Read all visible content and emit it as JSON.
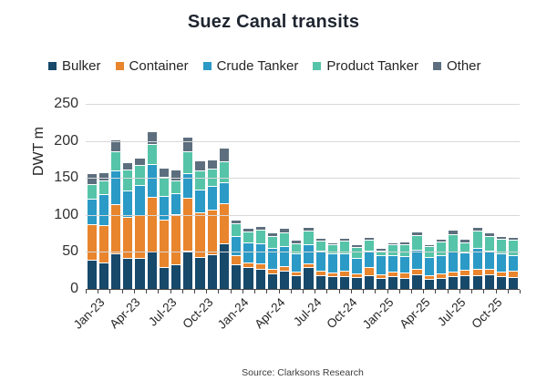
{
  "chart_data": {
    "type": "bar",
    "stacked": true,
    "title": "Suez Canal transits",
    "ylabel": "DWT m",
    "ylim": [
      0,
      250
    ],
    "yticks": [
      0,
      50,
      100,
      150,
      200,
      250
    ],
    "grid": true,
    "legend_position": "top",
    "xtick_labels": [
      "Jan-23",
      "Apr-23",
      "Jul-23",
      "Oct-23",
      "Jan-24",
      "Apr-24",
      "Jul-24",
      "Oct-24",
      "Jan-25",
      "Apr-25",
      "Jul-25",
      "Oct-25"
    ],
    "categories": [
      "Jan-23",
      "Feb-23",
      "Mar-23",
      "Apr-23",
      "May-23",
      "Jun-23",
      "Jul-23",
      "Aug-23",
      "Sep-23",
      "Oct-23",
      "Nov-23",
      "Dec-23",
      "Jan-24",
      "Feb-24",
      "Mar-24",
      "Apr-24",
      "May-24",
      "Jun-24",
      "Jul-24",
      "Aug-24",
      "Sep-24",
      "Oct-24",
      "Nov-24",
      "Dec-24",
      "Jan-25",
      "Feb-25",
      "Mar-25",
      "Apr-25",
      "May-25",
      "Jun-25",
      "Jul-25",
      "Aug-25",
      "Sep-25",
      "Oct-25",
      "Nov-25",
      "Dec-25"
    ],
    "series": [
      {
        "name": "Bulker",
        "color": "#17496B",
        "values": [
          40,
          36,
          48,
          42,
          42,
          50,
          29,
          33,
          52,
          43,
          47,
          62,
          33,
          29,
          27,
          21,
          25,
          19,
          29,
          19,
          17,
          17,
          16,
          19,
          15,
          17,
          15,
          20,
          14,
          15,
          17,
          19,
          18,
          20,
          17,
          16
        ]
      },
      {
        "name": "Container",
        "color": "#E8852D",
        "values": [
          48,
          50,
          66,
          55,
          58,
          74,
          65,
          68,
          71,
          61,
          60,
          54,
          13,
          7,
          7,
          6,
          6,
          5,
          5,
          6,
          5,
          8,
          5,
          10,
          5,
          6,
          7,
          7,
          5,
          6,
          6,
          7,
          9,
          7,
          7,
          9
        ]
      },
      {
        "name": "Crude Tanker",
        "color": "#2B9AC6",
        "values": [
          34,
          42,
          46,
          36,
          40,
          45,
          32,
          28,
          34,
          30,
          32,
          28,
          26,
          27,
          27,
          29,
          27,
          24,
          26,
          27,
          26,
          23,
          21,
          23,
          25,
          23,
          22,
          26,
          24,
          25,
          28,
          23,
          28,
          25,
          24,
          21
        ]
      },
      {
        "name": "Product Tanker",
        "color": "#56C4A8",
        "values": [
          20,
          19,
          26,
          28,
          28,
          27,
          26,
          18,
          29,
          26,
          24,
          28,
          17,
          15,
          19,
          16,
          19,
          14,
          19,
          13,
          12,
          17,
          15,
          14,
          7,
          14,
          16,
          20,
          15,
          18,
          23,
          14,
          24,
          20,
          20,
          20
        ]
      },
      {
        "name": "Other",
        "color": "#5D6F7E",
        "values": [
          14,
          11,
          16,
          10,
          9,
          17,
          12,
          15,
          20,
          14,
          12,
          19,
          5,
          4,
          5,
          5,
          5,
          4,
          5,
          4,
          3,
          4,
          3,
          4,
          3,
          3,
          4,
          5,
          3,
          4,
          6,
          5,
          5,
          4,
          4,
          4
        ]
      }
    ],
    "grid_color": "#D9D9D9",
    "axis_color": "#454545",
    "source": "Source: Clarksons Research"
  }
}
